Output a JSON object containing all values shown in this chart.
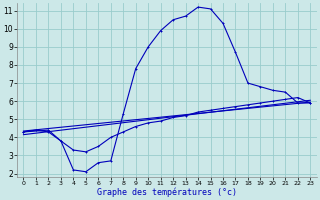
{
  "xlabel": "Graphe des températures (°c)",
  "bg_color": "#cce8e8",
  "grid_color": "#99cccc",
  "line_color": "#0000bb",
  "xlim": [
    -0.5,
    23.5
  ],
  "ylim": [
    1.8,
    11.4
  ],
  "xticks": [
    0,
    1,
    2,
    3,
    4,
    5,
    6,
    7,
    8,
    9,
    10,
    11,
    12,
    13,
    14,
    15,
    16,
    17,
    18,
    19,
    20,
    21,
    22,
    23
  ],
  "yticks": [
    2,
    3,
    4,
    5,
    6,
    7,
    8,
    9,
    10,
    11
  ],
  "curve1_x": [
    0,
    1,
    2,
    3,
    4,
    5,
    6,
    7,
    8,
    9,
    10,
    11,
    12,
    13,
    14,
    15,
    16,
    17,
    18,
    19,
    20,
    21,
    22,
    23
  ],
  "curve1_y": [
    4.3,
    4.4,
    4.3,
    3.8,
    2.2,
    2.1,
    2.6,
    2.7,
    5.3,
    7.8,
    9.0,
    9.9,
    10.5,
    10.7,
    11.2,
    11.1,
    10.3,
    8.7,
    7.0,
    6.8,
    6.6,
    6.5,
    5.9,
    5.9
  ],
  "curve2_x": [
    0,
    2,
    3,
    4,
    5,
    6,
    7,
    8,
    9,
    10,
    11,
    12,
    13,
    14,
    15,
    16,
    17,
    18,
    19,
    20,
    21,
    22,
    23
  ],
  "curve2_y": [
    4.3,
    4.4,
    3.8,
    3.3,
    3.2,
    3.5,
    4.0,
    4.3,
    4.6,
    4.8,
    4.9,
    5.1,
    5.2,
    5.4,
    5.5,
    5.6,
    5.7,
    5.8,
    5.9,
    6.0,
    6.1,
    6.2,
    5.9
  ],
  "line1_x": [
    0,
    23
  ],
  "line1_y": [
    4.35,
    5.95
  ],
  "line2_x": [
    0,
    23
  ],
  "line2_y": [
    4.15,
    6.05
  ]
}
